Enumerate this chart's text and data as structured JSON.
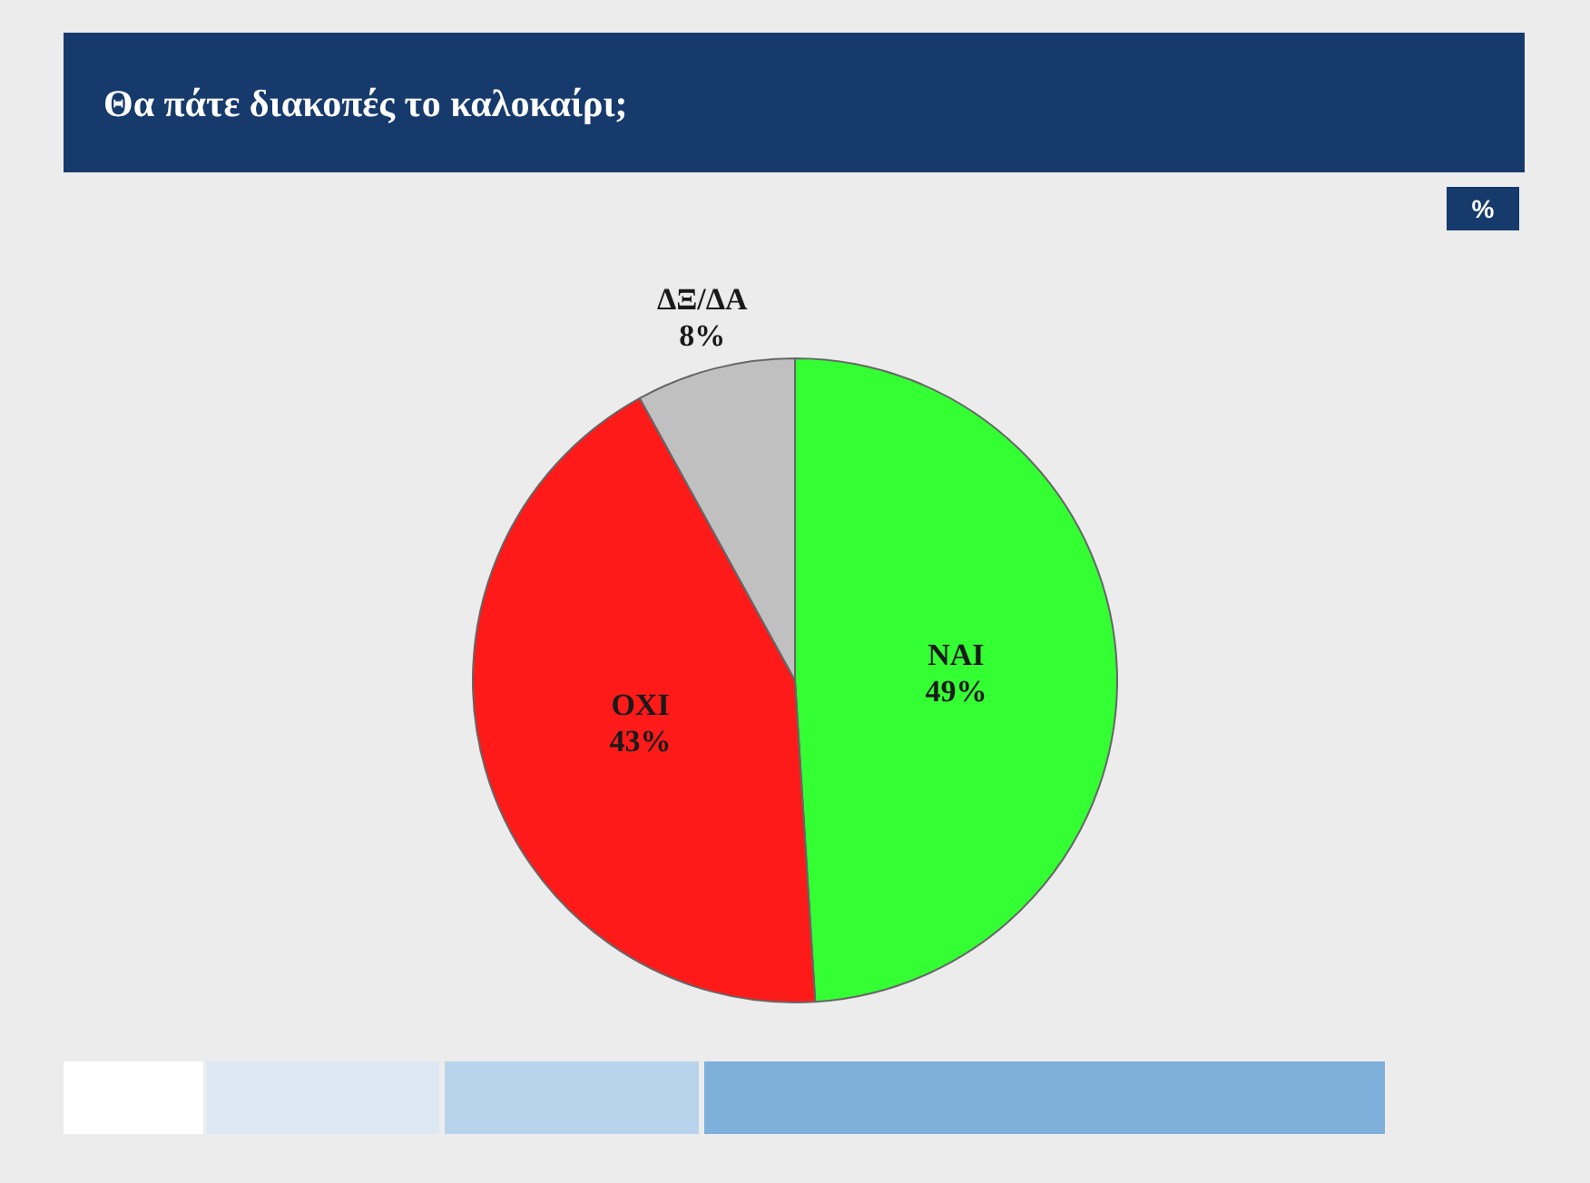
{
  "chart_data": {
    "type": "pie",
    "title": "Θα πάτε διακοπές το καλοκαίρι;",
    "categories": [
      "ΝΑΙ",
      "ΟΧΙ",
      "ΔΞ/ΔΑ"
    ],
    "values": [
      49,
      43,
      8
    ],
    "colors": [
      "#33ff33",
      "#ff1a1a",
      "#c0c0c0"
    ],
    "value_labels": [
      "49%",
      "43%",
      "8%"
    ],
    "annotations": [
      "%"
    ],
    "legend": false
  }
}
